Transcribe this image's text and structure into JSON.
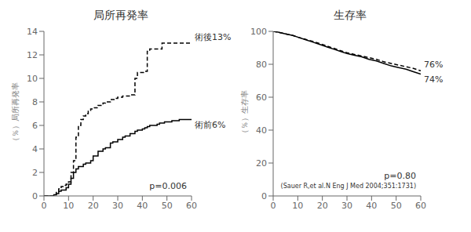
{
  "chart_data": [
    {
      "type": "step",
      "title": "局所再発率",
      "ylabel": "（％）局所再発率",
      "xlim": [
        0,
        60
      ],
      "xticks": [
        0,
        10,
        20,
        30,
        40,
        50,
        60
      ],
      "ylim": [
        0,
        14
      ],
      "yticks": [
        0,
        2,
        4,
        6,
        8,
        10,
        12,
        14
      ],
      "grid": false,
      "annotations": [
        "p=0.006"
      ],
      "series": [
        {
          "name": "術前6%",
          "color": "#000000",
          "line_style": "solid",
          "x": [
            0,
            2,
            3,
            4,
            5,
            6,
            7,
            8,
            9,
            10,
            11,
            12,
            13,
            14,
            15,
            16,
            17,
            18,
            19,
            20,
            22,
            24,
            25,
            27,
            28,
            30,
            32,
            33,
            35,
            37,
            38,
            40,
            41,
            42,
            43,
            44,
            45,
            46,
            47,
            48,
            49,
            50,
            52,
            55,
            57,
            60
          ],
          "values": [
            0,
            0,
            0,
            0.1,
            0.2,
            0.4,
            0.5,
            0.5,
            0.7,
            1.0,
            1.5,
            2.0,
            2.3,
            2.5,
            2.5,
            2.7,
            2.8,
            2.8,
            3.0,
            3.4,
            3.8,
            4.0,
            4.1,
            4.5,
            4.6,
            4.8,
            5.0,
            5.1,
            5.3,
            5.5,
            5.6,
            5.7,
            5.8,
            5.9,
            6.0,
            6.0,
            6.0,
            6.1,
            6.2,
            6.2,
            6.3,
            6.3,
            6.4,
            6.5,
            6.5,
            6.5
          ]
        },
        {
          "name": "術後13%",
          "color": "#000000",
          "line_style": "dashed",
          "x": [
            0,
            2,
            3,
            4,
            5,
            6,
            7,
            8,
            9,
            10,
            11,
            12,
            13,
            14,
            15,
            16,
            17,
            18,
            19,
            20,
            22,
            24,
            25,
            27,
            29,
            30,
            32,
            33,
            35,
            37,
            38,
            39,
            40,
            41,
            42,
            43,
            44,
            46,
            48,
            50,
            52,
            55,
            57,
            60
          ],
          "values": [
            0,
            0,
            0,
            0.1,
            0.3,
            0.6,
            0.8,
            0.9,
            1.0,
            1.2,
            2.0,
            3.0,
            5.0,
            6.0,
            6.5,
            6.8,
            7.0,
            7.2,
            7.4,
            7.5,
            7.7,
            7.9,
            8.0,
            8.2,
            8.3,
            8.4,
            8.5,
            8.5,
            8.6,
            10.0,
            10.5,
            10.5,
            10.5,
            10.6,
            12.3,
            12.5,
            12.5,
            12.5,
            13.0,
            13.0,
            13.0,
            13.0,
            13.0,
            13.0
          ]
        }
      ]
    },
    {
      "type": "line",
      "title": "生存率",
      "ylabel": "（％）生存率",
      "xlim": [
        0,
        60
      ],
      "xticks": [
        0,
        10,
        20,
        30,
        40,
        50,
        60
      ],
      "ylim": [
        0,
        100
      ],
      "yticks": [
        0,
        20,
        40,
        60,
        80,
        100
      ],
      "grid": false,
      "annotations": [
        "p=0.80",
        "(Sauer R,et al.N Eng J Med 2004;351:1731)"
      ],
      "series": [
        {
          "name": "74%",
          "color": "#000000",
          "line_style": "solid",
          "x": [
            0,
            2,
            5,
            8,
            10,
            13,
            16,
            19,
            22,
            25,
            28,
            30,
            33,
            36,
            39,
            42,
            45,
            48,
            51,
            54,
            57,
            60
          ],
          "values": [
            100,
            99.5,
            98.5,
            97.5,
            96.5,
            95.0,
            93.5,
            92.0,
            90.5,
            89.0,
            87.5,
            86.5,
            85.5,
            84.5,
            83.0,
            82.0,
            80.5,
            79.0,
            78.0,
            77.0,
            75.5,
            74.0
          ]
        },
        {
          "name": "76%",
          "color": "#000000",
          "line_style": "dashed",
          "x": [
            0,
            2,
            5,
            8,
            10,
            13,
            16,
            19,
            22,
            25,
            28,
            30,
            33,
            36,
            39,
            42,
            45,
            48,
            51,
            54,
            57,
            60
          ],
          "values": [
            100,
            99.5,
            98.5,
            97.5,
            96.5,
            95.2,
            94.0,
            92.5,
            91.0,
            89.5,
            88.0,
            87.0,
            86.0,
            85.0,
            84.0,
            83.0,
            81.5,
            80.5,
            79.5,
            78.5,
            77.5,
            76.0
          ]
        }
      ]
    }
  ]
}
